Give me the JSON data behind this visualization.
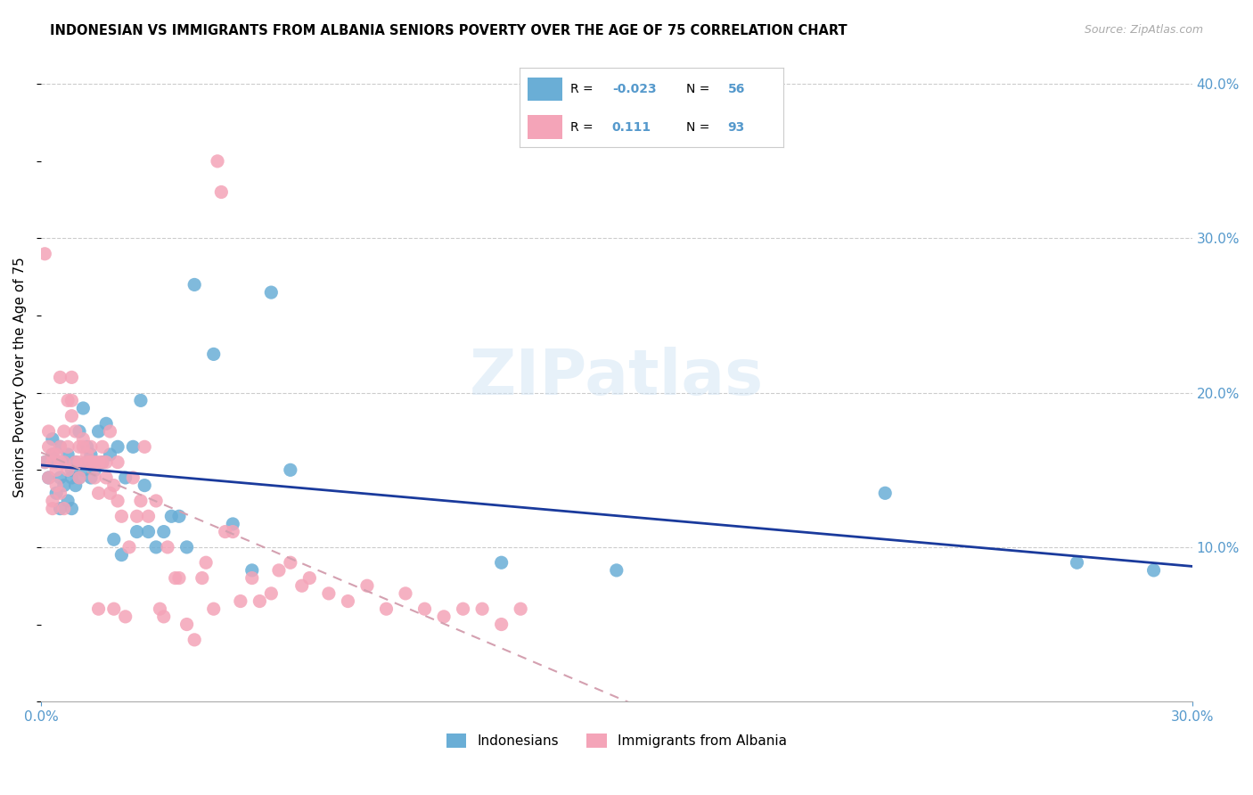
{
  "title": "INDONESIAN VS IMMIGRANTS FROM ALBANIA SENIORS POVERTY OVER THE AGE OF 75 CORRELATION CHART",
  "source": "Source: ZipAtlas.com",
  "ylabel": "Seniors Poverty Over the Age of 75",
  "right_ytick_vals": [
    0.1,
    0.2,
    0.3,
    0.4
  ],
  "blue_color": "#6aaed6",
  "pink_color": "#f4a4b8",
  "trendline_blue": "#1a3a9c",
  "trendline_pink": "#d4a0b0",
  "watermark": "ZIPatlas",
  "indonesians_label": "Indonesians",
  "albania_label": "Immigrants from Albania",
  "xmin": 0.0,
  "xmax": 0.3,
  "ymin": 0.0,
  "ymax": 0.42,
  "indonesians_x": [
    0.001,
    0.002,
    0.003,
    0.003,
    0.004,
    0.004,
    0.005,
    0.005,
    0.005,
    0.006,
    0.006,
    0.007,
    0.007,
    0.008,
    0.008,
    0.008,
    0.009,
    0.009,
    0.01,
    0.01,
    0.011,
    0.011,
    0.012,
    0.012,
    0.013,
    0.013,
    0.014,
    0.015,
    0.016,
    0.017,
    0.018,
    0.019,
    0.02,
    0.021,
    0.022,
    0.024,
    0.025,
    0.026,
    0.027,
    0.028,
    0.03,
    0.032,
    0.034,
    0.036,
    0.038,
    0.04,
    0.045,
    0.05,
    0.055,
    0.06,
    0.065,
    0.12,
    0.15,
    0.22,
    0.27,
    0.29
  ],
  "indonesians_y": [
    0.155,
    0.145,
    0.16,
    0.17,
    0.155,
    0.135,
    0.165,
    0.125,
    0.145,
    0.155,
    0.14,
    0.13,
    0.16,
    0.15,
    0.145,
    0.125,
    0.14,
    0.155,
    0.175,
    0.145,
    0.19,
    0.15,
    0.165,
    0.155,
    0.145,
    0.16,
    0.15,
    0.175,
    0.155,
    0.18,
    0.16,
    0.105,
    0.165,
    0.095,
    0.145,
    0.165,
    0.11,
    0.195,
    0.14,
    0.11,
    0.1,
    0.11,
    0.12,
    0.12,
    0.1,
    0.27,
    0.225,
    0.115,
    0.085,
    0.265,
    0.15,
    0.09,
    0.085,
    0.135,
    0.09,
    0.085
  ],
  "albania_x": [
    0.001,
    0.001,
    0.002,
    0.002,
    0.002,
    0.003,
    0.003,
    0.003,
    0.003,
    0.004,
    0.004,
    0.004,
    0.005,
    0.005,
    0.005,
    0.005,
    0.006,
    0.006,
    0.006,
    0.007,
    0.007,
    0.007,
    0.008,
    0.008,
    0.008,
    0.009,
    0.009,
    0.01,
    0.01,
    0.01,
    0.011,
    0.011,
    0.012,
    0.012,
    0.013,
    0.013,
    0.014,
    0.014,
    0.015,
    0.015,
    0.015,
    0.016,
    0.016,
    0.017,
    0.017,
    0.018,
    0.018,
    0.019,
    0.019,
    0.02,
    0.02,
    0.021,
    0.022,
    0.023,
    0.024,
    0.025,
    0.026,
    0.027,
    0.028,
    0.03,
    0.031,
    0.032,
    0.033,
    0.035,
    0.036,
    0.038,
    0.04,
    0.042,
    0.043,
    0.045,
    0.046,
    0.047,
    0.048,
    0.05,
    0.052,
    0.055,
    0.057,
    0.06,
    0.062,
    0.065,
    0.068,
    0.07,
    0.075,
    0.08,
    0.085,
    0.09,
    0.095,
    0.1,
    0.105,
    0.11,
    0.115,
    0.12,
    0.125
  ],
  "albania_y": [
    0.155,
    0.29,
    0.145,
    0.165,
    0.175,
    0.125,
    0.16,
    0.155,
    0.13,
    0.16,
    0.15,
    0.14,
    0.21,
    0.155,
    0.165,
    0.135,
    0.175,
    0.155,
    0.125,
    0.195,
    0.165,
    0.15,
    0.21,
    0.185,
    0.195,
    0.155,
    0.175,
    0.165,
    0.155,
    0.145,
    0.165,
    0.17,
    0.16,
    0.155,
    0.155,
    0.165,
    0.145,
    0.155,
    0.06,
    0.135,
    0.155,
    0.155,
    0.165,
    0.145,
    0.155,
    0.175,
    0.135,
    0.06,
    0.14,
    0.13,
    0.155,
    0.12,
    0.055,
    0.1,
    0.145,
    0.12,
    0.13,
    0.165,
    0.12,
    0.13,
    0.06,
    0.055,
    0.1,
    0.08,
    0.08,
    0.05,
    0.04,
    0.08,
    0.09,
    0.06,
    0.35,
    0.33,
    0.11,
    0.11,
    0.065,
    0.08,
    0.065,
    0.07,
    0.085,
    0.09,
    0.075,
    0.08,
    0.07,
    0.065,
    0.075,
    0.06,
    0.07,
    0.06,
    0.055,
    0.06,
    0.06,
    0.05,
    0.06
  ]
}
